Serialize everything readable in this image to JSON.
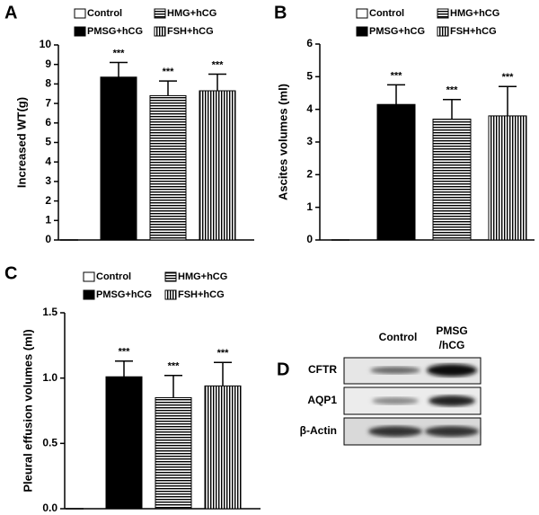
{
  "chart_data": [
    {
      "type": "bar",
      "panel": "A",
      "ylabel": "Increased WT(g)",
      "categories": [
        "Control",
        "PMSG+hCG",
        "HMG+hCG",
        "FSH+hCG"
      ],
      "patterns": [
        "white",
        "black",
        "hstripe",
        "vstripe"
      ],
      "values": [
        0,
        8.35,
        7.4,
        7.65
      ],
      "errors": [
        0,
        0.75,
        0.75,
        0.85
      ],
      "annotations": [
        null,
        "***",
        "***",
        "***"
      ],
      "ylim": [
        0,
        10
      ],
      "yticks": [
        0,
        1,
        2,
        3,
        4,
        5,
        6,
        7,
        8,
        9,
        10
      ]
    },
    {
      "type": "bar",
      "panel": "B",
      "ylabel": "Ascites volumes (ml)",
      "categories": [
        "Control",
        "PMSG+hCG",
        "HMG+hCG",
        "FSH+hCG"
      ],
      "patterns": [
        "white",
        "black",
        "hstripe",
        "vstripe"
      ],
      "values": [
        0,
        4.15,
        3.7,
        3.8
      ],
      "errors": [
        0,
        0.6,
        0.6,
        0.9
      ],
      "annotations": [
        null,
        "***",
        "***",
        "***"
      ],
      "ylim": [
        0,
        6
      ],
      "yticks": [
        0,
        1,
        2,
        3,
        4,
        5,
        6
      ]
    },
    {
      "type": "bar",
      "panel": "C",
      "ylabel": "Pleural effusion volumes (ml)",
      "categories": [
        "Control",
        "PMSG+hCG",
        "HMG+hCG",
        "FSH+hCG"
      ],
      "patterns": [
        "white",
        "black",
        "hstripe",
        "vstripe"
      ],
      "values": [
        0,
        1.01,
        0.85,
        0.94
      ],
      "errors": [
        0,
        0.12,
        0.17,
        0.18
      ],
      "annotations": [
        null,
        "***",
        "***",
        "***"
      ],
      "ylim": [
        0,
        1.5
      ],
      "yticks": [
        {
          "value": 0,
          "label": "0.0"
        },
        0.5,
        {
          "value": 1,
          "label": "1.0"
        },
        1.5
      ]
    }
  ],
  "blot": {
    "panel": "D",
    "columns": [
      "Control",
      "PMSG",
      "/hCG"
    ],
    "rows": [
      "CFTR",
      "AQP1",
      "β-Actin"
    ]
  }
}
